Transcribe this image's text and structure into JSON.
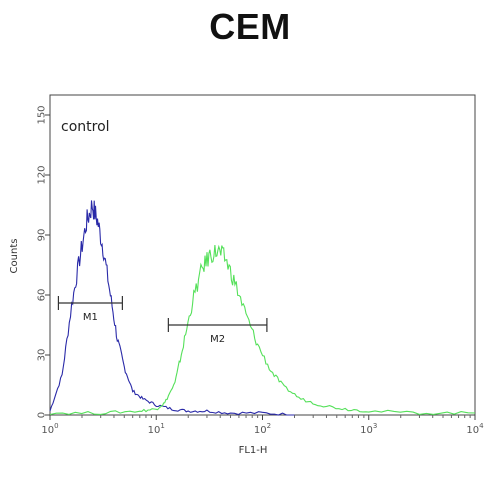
{
  "chart_data": {
    "type": "line",
    "title": "CEM",
    "xlabel": "FL1-H",
    "ylabel": "Counts",
    "xscale": "log",
    "xlim": [
      1,
      10000
    ],
    "ylim": [
      0,
      160
    ],
    "x_ticks": [
      {
        "value": 1,
        "base": "10",
        "exp": "0"
      },
      {
        "value": 10,
        "base": "10",
        "exp": "1"
      },
      {
        "value": 100,
        "base": "10",
        "exp": "2"
      },
      {
        "value": 1000,
        "base": "10",
        "exp": "3"
      },
      {
        "value": 10000,
        "base": "10",
        "exp": "4"
      }
    ],
    "y_ticks": [
      0,
      30,
      60,
      90,
      120,
      150
    ],
    "annotation": "control",
    "series": [
      {
        "color": "#2a2aa8",
        "x": [
          1,
          1.3,
          1.6,
          1.9,
          2.2,
          2.5,
          2.8,
          3.2,
          3.7,
          4.3,
          5,
          6,
          7.5,
          10,
          14,
          20,
          30,
          50,
          100,
          200
        ],
        "y": [
          2,
          20,
          55,
          78,
          96,
          105,
          97,
          82,
          60,
          38,
          24,
          12,
          8,
          5,
          3,
          2,
          2,
          1,
          1,
          0
        ]
      },
      {
        "color": "#55e05a",
        "x": [
          1,
          3,
          7,
          10,
          12,
          15,
          18,
          22,
          27,
          32,
          38,
          45,
          55,
          70,
          90,
          120,
          160,
          230,
          350,
          600,
          1000,
          3000,
          10000
        ],
        "y": [
          1,
          1,
          2,
          3,
          6,
          16,
          35,
          57,
          73,
          80,
          82,
          78,
          66,
          50,
          35,
          22,
          14,
          8,
          5,
          3,
          2,
          1,
          1
        ]
      }
    ],
    "markers": [
      {
        "label": "M1",
        "x_start": 1.2,
        "x_end": 4.8,
        "y": 56
      },
      {
        "label": "M2",
        "x_start": 13,
        "x_end": 110,
        "y": 45
      }
    ]
  }
}
